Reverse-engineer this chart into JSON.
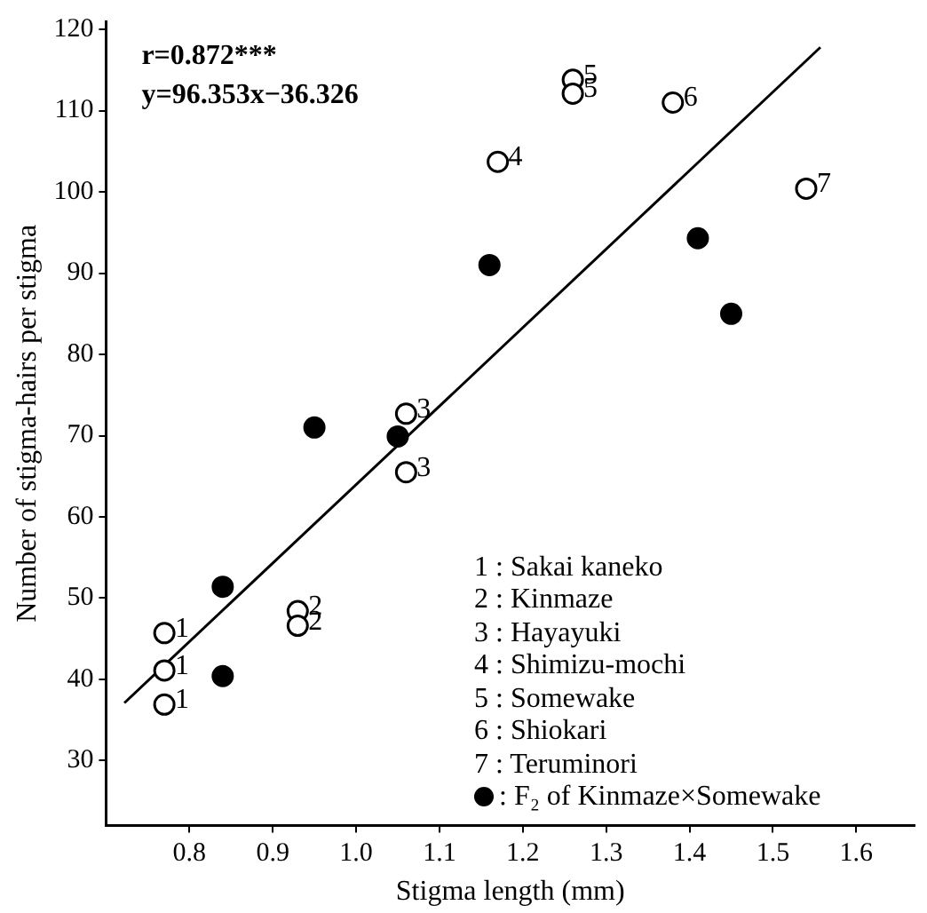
{
  "chart_data": {
    "type": "scatter",
    "title": "r=0.872***",
    "subtitle": "y=96.353x−36.326",
    "xlabel": "Stigma length (mm)",
    "ylabel": "Number of stigma-hairs per stigma",
    "xlim": [
      0.7,
      1.67
    ],
    "xticks": [
      0.8,
      0.9,
      {
        "value": 1,
        "label": "1.0"
      },
      1.1,
      1.2,
      1.3,
      1.4,
      1.5,
      1.6
    ],
    "ylim": [
      22,
      121
    ],
    "yticks": [
      30,
      40,
      50,
      60,
      70,
      80,
      90,
      100,
      110,
      120
    ],
    "grid": false,
    "legend": "bottom right",
    "marker": "circle",
    "series": [
      {
        "color": "#000000",
        "x": [
          0.77,
          0.77,
          0.77,
          0.93,
          0.93,
          1.06,
          1.06,
          1.17,
          1.26,
          1.26,
          1.38,
          1.54
        ],
        "values": [
          45.7,
          41.1,
          36.9,
          48.4,
          46.6,
          72.7,
          65.5,
          103.7,
          113.8,
          112.1,
          111.0,
          100.4
        ]
      },
      {
        "name": ": F₂ of Kinmaze×Somewake",
        "color": "#000000",
        "x": [
          0.84,
          0.84,
          0.95,
          1.05,
          1.16,
          1.41,
          1.45
        ],
        "values": [
          51.4,
          40.4,
          71.0,
          69.9,
          91.0,
          94.3,
          85.0
        ]
      },
      {
        "type": "line",
        "marker": "none",
        "color": "#000000",
        "x": [
          0.722,
          1.557
        ],
        "values": [
          37.1,
          117.8
        ]
      }
    ],
    "annotations": [
      {
        "text": "1",
        "x": 0.77,
        "y": 45.7
      },
      {
        "text": "1",
        "x": 0.77,
        "y": 41.1
      },
      {
        "text": "1",
        "x": 0.77,
        "y": 36.9
      },
      {
        "text": "2",
        "x": 0.93,
        "y": 48.4
      },
      {
        "text": "2",
        "x": 0.93,
        "y": 46.6
      },
      {
        "text": "3",
        "x": 1.06,
        "y": 72.7
      },
      {
        "text": "3",
        "x": 1.06,
        "y": 65.5
      },
      {
        "text": "4",
        "x": 1.17,
        "y": 103.7
      },
      {
        "text": "5",
        "x": 1.26,
        "y": 113.8
      },
      {
        "text": "5",
        "x": 1.26,
        "y": 112.1
      },
      {
        "text": "6",
        "x": 1.38,
        "y": 111.0
      },
      {
        "text": "7",
        "x": 1.54,
        "y": 100.4
      },
      "1 : Sakai kaneko",
      "2 : Kinmaze",
      "3 : Hayayuki",
      "4 : Shimizu-mochi",
      "5 : Somewake",
      "6 : Shiokari",
      "7 : Teruminori"
    ]
  }
}
